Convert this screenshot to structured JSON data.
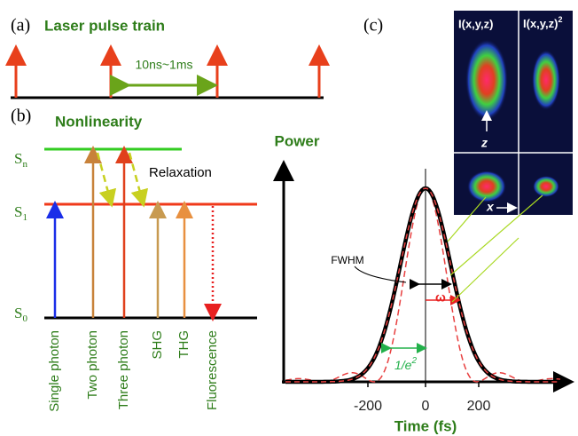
{
  "panel_a": {
    "label": "(a)",
    "title": "Laser pulse train",
    "interval": "10ns~1ms"
  },
  "panel_b": {
    "label": "(b)",
    "title": "Nonlinearity",
    "relaxation": "Relaxation",
    "levels": [
      {
        "name": "S",
        "sub": "n"
      },
      {
        "name": "S",
        "sub": "1"
      },
      {
        "name": "S",
        "sub": "0"
      }
    ],
    "processes": [
      "Single photon",
      "Two photon",
      "Three photon",
      "SHG",
      "THG",
      "Fluorescence"
    ]
  },
  "panel_c": {
    "label": "(c)",
    "y_label": "Power",
    "x_label": "Time (fs)",
    "xticks": [
      "-200",
      "0",
      "200"
    ],
    "fwhm": "FWHM",
    "omega": "ω",
    "width_label": {
      "base": "1/e",
      "sup": "2"
    },
    "image_labels": [
      {
        "base": "I(x,y,z)"
      },
      {
        "base": "I(x,y,z)",
        "sup": "2"
      }
    ],
    "axis_z": "z",
    "axis_x": "x"
  }
}
